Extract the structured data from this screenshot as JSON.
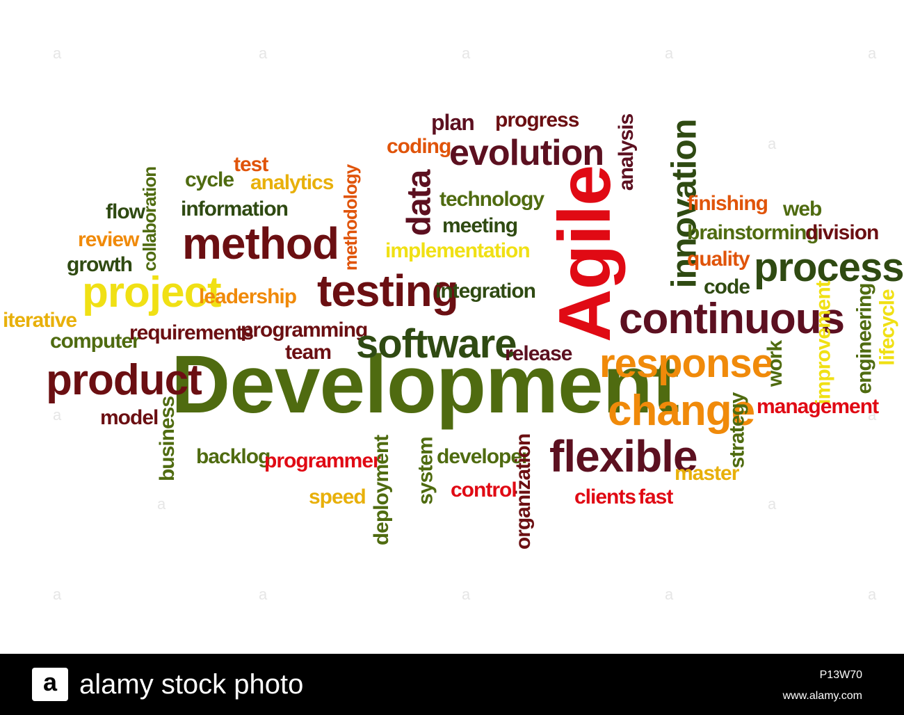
{
  "colors": {
    "dark_red": "#6b0f12",
    "maroon": "#5c1020",
    "olive": "#4f6b10",
    "dark_green": "#2f4a12",
    "red": "#e00a14",
    "orange": "#f08a0a",
    "dark_orange": "#e0540a",
    "yellow": "#f0e014",
    "gold": "#e8b00a"
  },
  "words": [
    {
      "text": "Development",
      "color": "#4f6b10"
    },
    {
      "text": "Agile",
      "color": "#e00a14"
    },
    {
      "text": "evolution",
      "color": "#5c1020"
    },
    {
      "text": "plan",
      "color": "#5c1020"
    },
    {
      "text": "progress",
      "color": "#6b0f12"
    },
    {
      "text": "coding",
      "color": "#e0540a"
    },
    {
      "text": "analysis",
      "color": "#5c1020"
    },
    {
      "text": "innovation",
      "color": "#2f4a12"
    },
    {
      "text": "test",
      "color": "#e0540a"
    },
    {
      "text": "cycle",
      "color": "#4f6b10"
    },
    {
      "text": "analytics",
      "color": "#e8b00a"
    },
    {
      "text": "data",
      "color": "#5c1020"
    },
    {
      "text": "technology",
      "color": "#4f6b10"
    },
    {
      "text": "methodology",
      "color": "#e0540a"
    },
    {
      "text": "collaboration",
      "color": "#4f6b10"
    },
    {
      "text": "flow",
      "color": "#2f4a12"
    },
    {
      "text": "information",
      "color": "#2f4a12"
    },
    {
      "text": "meeting",
      "color": "#2f4a12"
    },
    {
      "text": "finishing",
      "color": "#e0540a"
    },
    {
      "text": "web",
      "color": "#4f6b10"
    },
    {
      "text": "brainstorming",
      "color": "#4f6b10"
    },
    {
      "text": "division",
      "color": "#6b0f12"
    },
    {
      "text": "review",
      "color": "#f08a0a"
    },
    {
      "text": "method",
      "color": "#6b0f12"
    },
    {
      "text": "implementation",
      "color": "#f0e014"
    },
    {
      "text": "quality",
      "color": "#e0540a"
    },
    {
      "text": "process",
      "color": "#2f4a12"
    },
    {
      "text": "growth",
      "color": "#2f4a12"
    },
    {
      "text": "project",
      "color": "#f0e014"
    },
    {
      "text": "leadership",
      "color": "#f08a0a"
    },
    {
      "text": "testing",
      "color": "#6b0f12"
    },
    {
      "text": "integration",
      "color": "#2f4a12"
    },
    {
      "text": "code",
      "color": "#2f4a12"
    },
    {
      "text": "continuous",
      "color": "#5c1020"
    },
    {
      "text": "iterative",
      "color": "#e8b00a"
    },
    {
      "text": "improvement",
      "color": "#f0e014"
    },
    {
      "text": "engineering",
      "color": "#4f6b10"
    },
    {
      "text": "lifecycle",
      "color": "#f0e014"
    },
    {
      "text": "computer",
      "color": "#4f6b10"
    },
    {
      "text": "requirements",
      "color": "#6b0f12"
    },
    {
      "text": "programming",
      "color": "#6b0f12"
    },
    {
      "text": "team",
      "color": "#6b0f12"
    },
    {
      "text": "software",
      "color": "#2f4a12"
    },
    {
      "text": "release",
      "color": "#5c1020"
    },
    {
      "text": "response",
      "color": "#f08a0a"
    },
    {
      "text": "work",
      "color": "#4f6b10"
    },
    {
      "text": "product",
      "color": "#6b0f12"
    },
    {
      "text": "change",
      "color": "#f08a0a"
    },
    {
      "text": "management",
      "color": "#e00a14"
    },
    {
      "text": "model",
      "color": "#6b0f12"
    },
    {
      "text": "business",
      "color": "#4f6b10"
    },
    {
      "text": "strategy",
      "color": "#4f6b10"
    },
    {
      "text": "backlog",
      "color": "#4f6b10"
    },
    {
      "text": "programmer",
      "color": "#e00a14"
    },
    {
      "text": "deployment",
      "color": "#4f6b10"
    },
    {
      "text": "system",
      "color": "#4f6b10"
    },
    {
      "text": "developer",
      "color": "#4f6b10"
    },
    {
      "text": "organization",
      "color": "#6b0f12"
    },
    {
      "text": "flexible",
      "color": "#5c1020"
    },
    {
      "text": "master",
      "color": "#e8b00a"
    },
    {
      "text": "speed",
      "color": "#e8b00a"
    },
    {
      "text": "control",
      "color": "#e00a14"
    },
    {
      "text": "clients",
      "color": "#e00a14"
    },
    {
      "text": "fast",
      "color": "#e00a14"
    }
  ],
  "footer": {
    "logo_letter": "a",
    "brand": "alamy stock photo",
    "image_code": "P13W70",
    "url": "www.alamy.com"
  },
  "watermark_letter": "a"
}
